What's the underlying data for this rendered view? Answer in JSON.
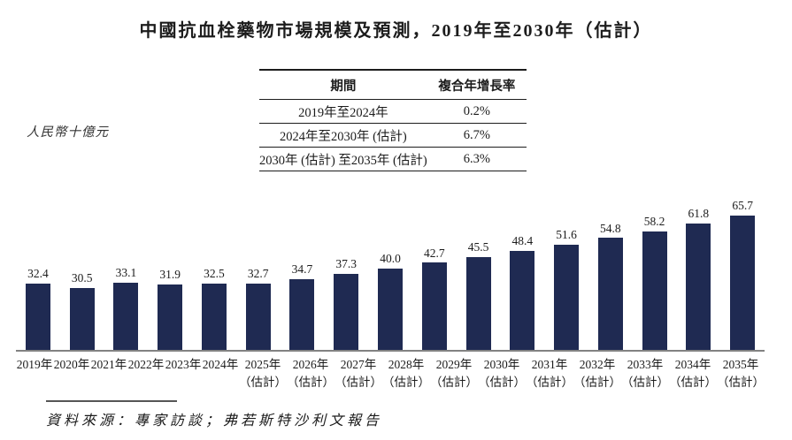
{
  "title": "中國抗血栓藥物市場規模及預測，2019年至2030年（估計）",
  "y_axis_label": "人民幣十億元",
  "cagr_table": {
    "headers": [
      "期間",
      "複合年增長率"
    ],
    "rows": [
      {
        "period": "2019年至2024年",
        "cagr": "0.2%"
      },
      {
        "period": "2024年至2030年 (估計)",
        "cagr": "6.7%"
      },
      {
        "period": "2030年 (估計) 至2035年 (估計)",
        "cagr": "6.3%"
      }
    ]
  },
  "source": "資料來源：專家訪談；弗若斯特沙利文報告",
  "chart_data": {
    "type": "bar",
    "title": "中國抗血栓藥物市場規模及預測，2019年至2030年（估計）",
    "xlabel": "",
    "ylabel": "人民幣十億元",
    "categories": [
      "2019年",
      "2020年",
      "2021年",
      "2022年",
      "2023年",
      "2024年",
      "2025年",
      "2026年",
      "2027年",
      "2028年",
      "2029年",
      "2030年",
      "2031年",
      "2032年",
      "2033年",
      "2034年",
      "2035年"
    ],
    "category_sublabels": [
      "",
      "",
      "",
      "",
      "",
      "",
      "（估計）",
      "（估計）",
      "（估計）",
      "（估計）",
      "（估計）",
      "（估計）",
      "（估計）",
      "（估計）",
      "（估計）",
      "（估計）",
      "（估計）"
    ],
    "values": [
      32.4,
      30.5,
      33.1,
      31.9,
      32.5,
      32.7,
      34.7,
      37.3,
      40.0,
      42.7,
      45.5,
      48.4,
      51.6,
      54.8,
      58.2,
      61.8,
      65.7
    ],
    "ylim": [
      0,
      70
    ],
    "bar_color": "#1f2a52",
    "axis_line_color": "#828282",
    "grid": false,
    "legend": null,
    "value_labels": true
  }
}
